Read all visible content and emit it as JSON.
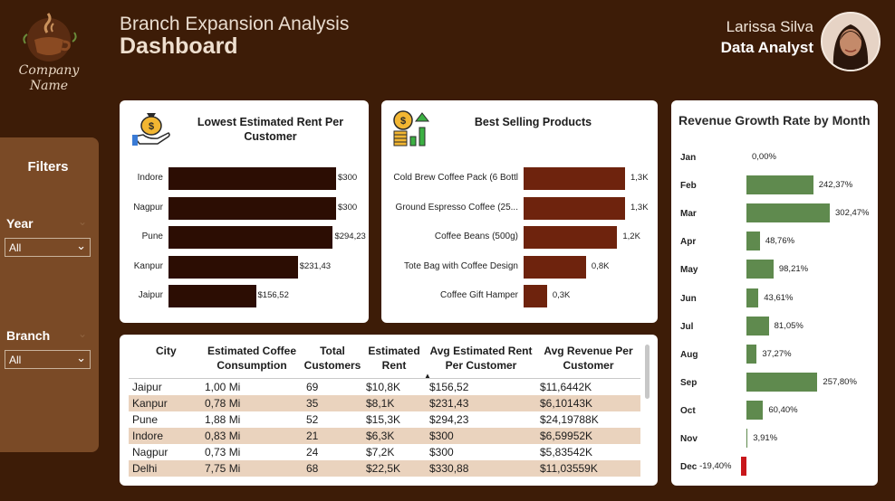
{
  "brand": {
    "logo_text": "Company\nName",
    "logo_line1": "Company",
    "logo_line2": "Name"
  },
  "header": {
    "subtitle": "Branch Expansion Analysis",
    "title": "Dashboard"
  },
  "user": {
    "name": "Larissa Silva",
    "role": "Data Analyst"
  },
  "filters": {
    "title": "Filters",
    "year": {
      "label": "Year",
      "value": "All"
    },
    "branch": {
      "label": "Branch",
      "value": "All"
    }
  },
  "colors": {
    "background": "#3d1c07",
    "rent_bar": "#2c0d03",
    "product_bar": "#6e230d",
    "growth_pos": "#5f8a4e",
    "growth_neg": "#c8161b"
  },
  "rent_chart": {
    "title": "Lowest Estimated Rent Per Customer",
    "icon": "money-bag-hand-icon",
    "rows": [
      {
        "label": "Indore",
        "value": 300,
        "value_label": "$300"
      },
      {
        "label": "Nagpur",
        "value": 300,
        "value_label": "$300"
      },
      {
        "label": "Pune",
        "value": 294.23,
        "value_label": "$294,23"
      },
      {
        "label": "Kanpur",
        "value": 231.43,
        "value_label": "$231,43"
      },
      {
        "label": "Jaipur",
        "value": 156.52,
        "value_label": "$156,52"
      }
    ]
  },
  "products_chart": {
    "title": "Best Selling Products",
    "icon": "coins-growth-icon",
    "rows": [
      {
        "label": "Cold Brew Coffee Pack (6 Bottl",
        "value": 1.3,
        "value_label": "1,3K"
      },
      {
        "label": "Ground Espresso Coffee (25...",
        "value": 1.3,
        "value_label": "1,3K"
      },
      {
        "label": "Coffee Beans (500g)",
        "value": 1.2,
        "value_label": "1,2K"
      },
      {
        "label": "Tote Bag with Coffee Design",
        "value": 0.8,
        "value_label": "0,8K"
      },
      {
        "label": "Coffee Gift Hamper",
        "value": 0.3,
        "value_label": "0,3K"
      }
    ]
  },
  "growth_chart": {
    "title": "Revenue Growth Rate by Month",
    "rows": [
      {
        "month": "Jan",
        "value": 0.0,
        "value_label": "0,00%"
      },
      {
        "month": "Feb",
        "value": 242.37,
        "value_label": "242,37%"
      },
      {
        "month": "Mar",
        "value": 302.47,
        "value_label": "302,47%"
      },
      {
        "month": "Apr",
        "value": 48.76,
        "value_label": "48,76%"
      },
      {
        "month": "May",
        "value": 98.21,
        "value_label": "98,21%"
      },
      {
        "month": "Jun",
        "value": 43.61,
        "value_label": "43,61%"
      },
      {
        "month": "Jul",
        "value": 81.05,
        "value_label": "81,05%"
      },
      {
        "month": "Aug",
        "value": 37.27,
        "value_label": "37,27%"
      },
      {
        "month": "Sep",
        "value": 257.8,
        "value_label": "257,80%"
      },
      {
        "month": "Oct",
        "value": 60.4,
        "value_label": "60,40%"
      },
      {
        "month": "Nov",
        "value": 3.91,
        "value_label": "3,91%"
      },
      {
        "month": "Dec",
        "value": -19.4,
        "value_label": "-19,40%"
      }
    ]
  },
  "table": {
    "headers": [
      "City",
      "Estimated Coffee Consumption",
      "Total Customers",
      "Estimated Rent",
      "Avg Estimated Rent Per Customer",
      "Avg Revenue Per Customer"
    ],
    "sort_indicator": "▲",
    "rows": [
      [
        "Jaipur",
        "1,00 Mi",
        "69",
        "$10,8K",
        "$156,52",
        "$11,6442K"
      ],
      [
        "Kanpur",
        "0,78 Mi",
        "35",
        "$8,1K",
        "$231,43",
        "$6,10143K"
      ],
      [
        "Pune",
        "1,88 Mi",
        "52",
        "$15,3K",
        "$294,23",
        "$24,19788K"
      ],
      [
        "Indore",
        "0,83 Mi",
        "21",
        "$6,3K",
        "$300",
        "$6,59952K"
      ],
      [
        "Nagpur",
        "0,73 Mi",
        "24",
        "$7,2K",
        "$300",
        "$5,83542K"
      ],
      [
        "Delhi",
        "7,75 Mi",
        "68",
        "$22,5K",
        "$330,88",
        "$11,03559K"
      ]
    ]
  }
}
